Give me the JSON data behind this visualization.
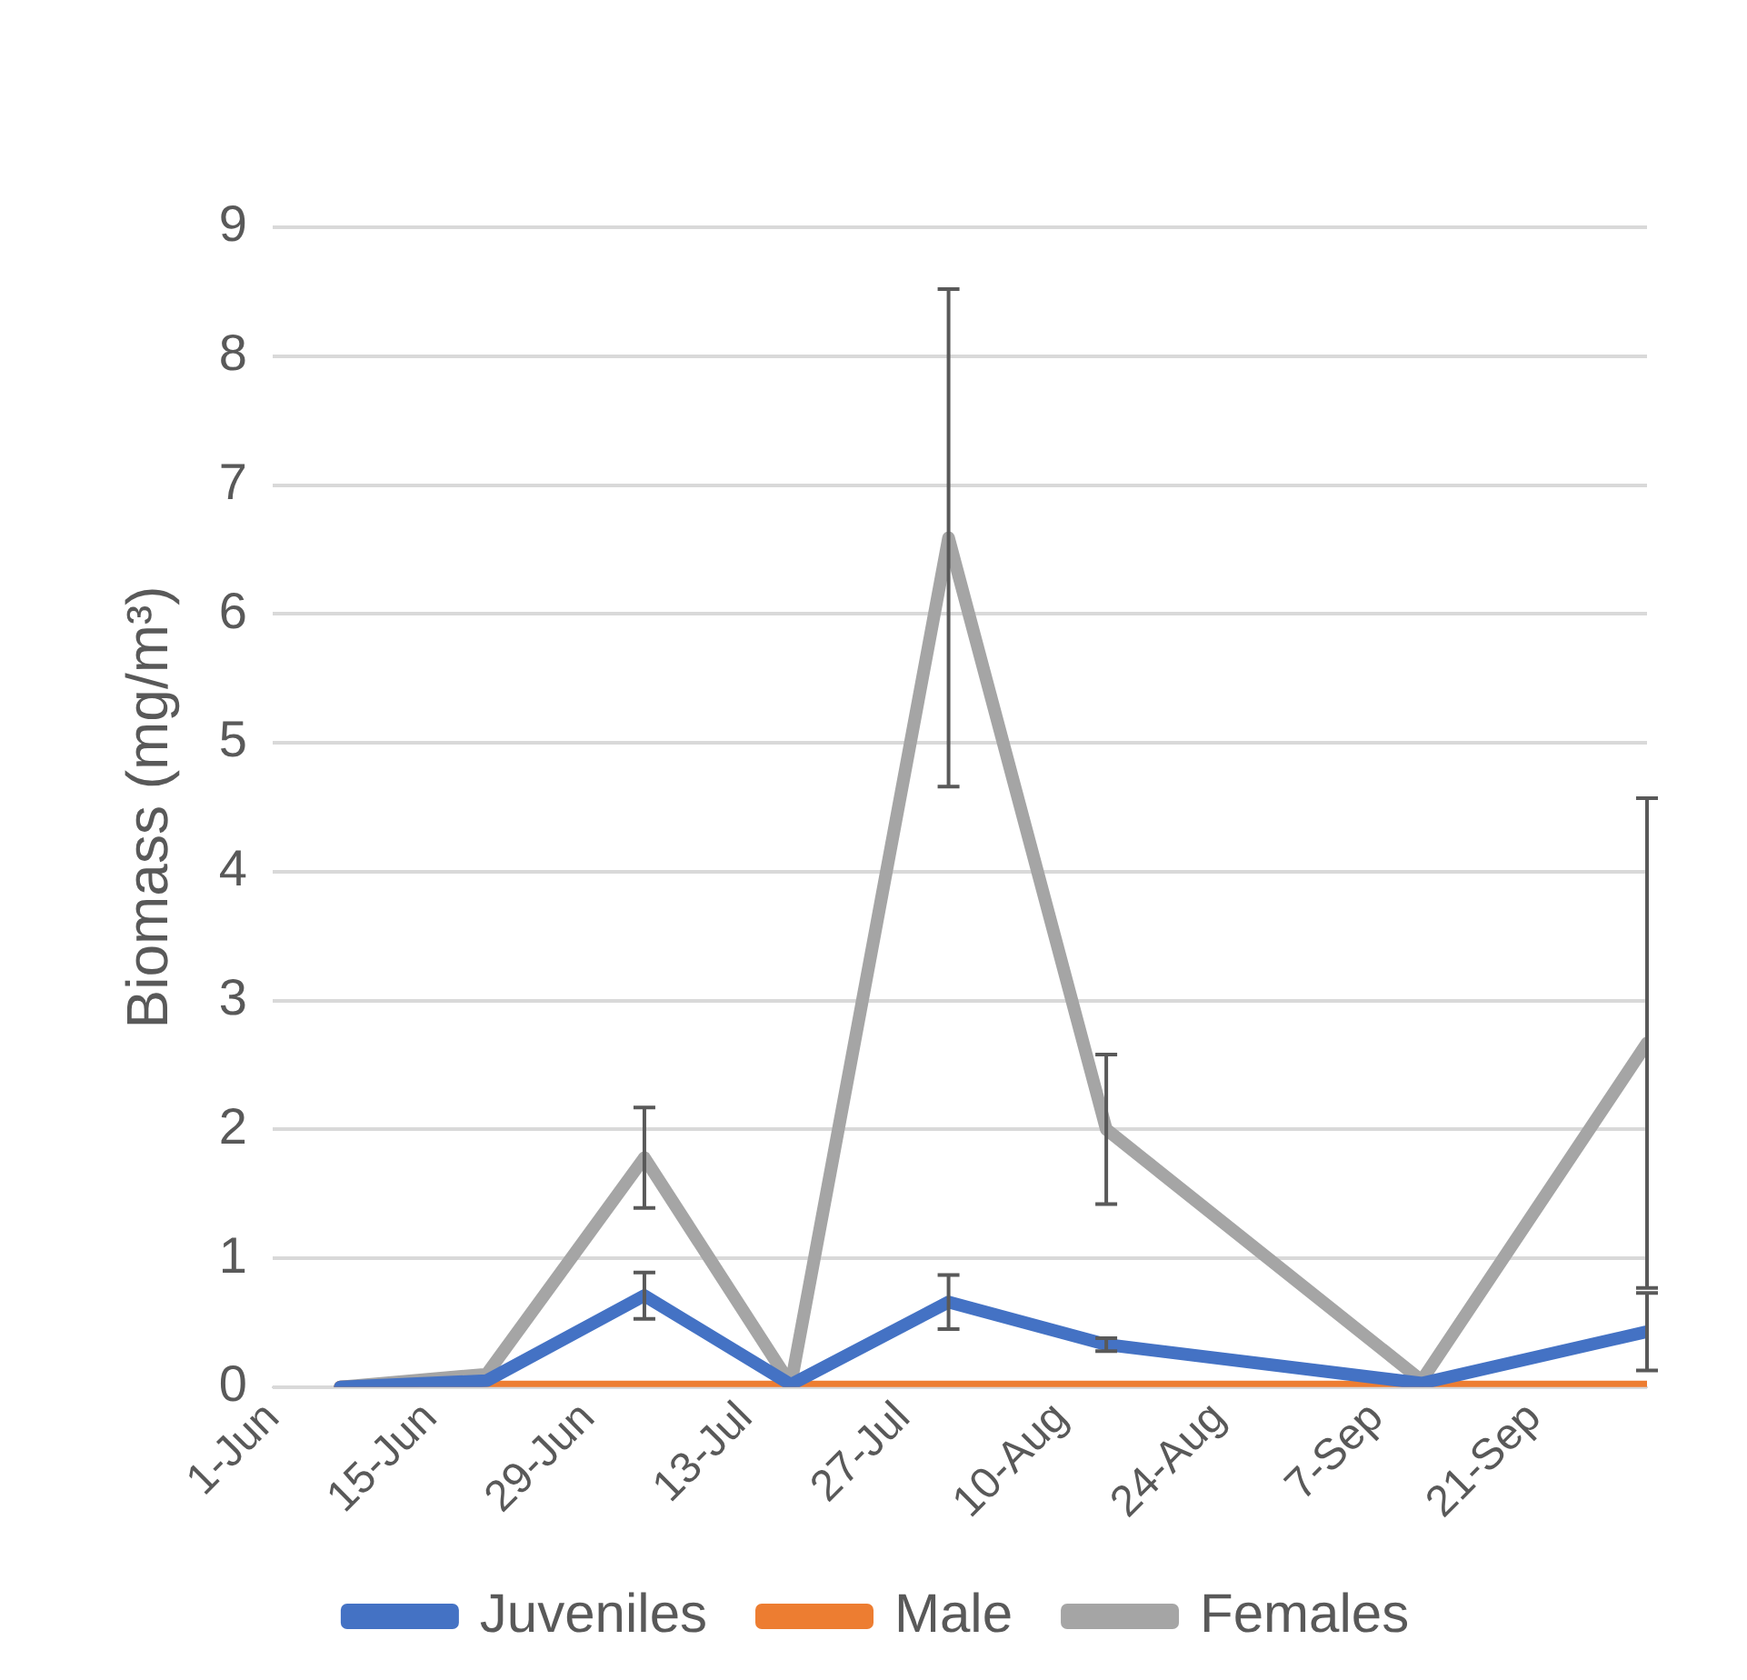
{
  "chart_data": {
    "type": "line",
    "ylabel": "Biomass (mg/m³)",
    "x": [
      "--06-07",
      "--06-20",
      "--07-04",
      "--07-17",
      "--07-31",
      "--08-14",
      "--09-11",
      "--10-01"
    ],
    "xlim": [
      "--06-01",
      "--10-01"
    ],
    "xticks": [
      {
        "value": "--06-01",
        "label": "1-Jun"
      },
      {
        "value": "--06-15",
        "label": "15-Jun"
      },
      {
        "value": "--06-29",
        "label": "29-Jun"
      },
      {
        "value": "--07-13",
        "label": "13-Jul"
      },
      {
        "value": "--07-27",
        "label": "27-Jul"
      },
      {
        "value": "--08-10",
        "label": "10-Aug"
      },
      {
        "value": "--08-24",
        "label": "24-Aug"
      },
      {
        "value": "--09-07",
        "label": "7-Sep"
      },
      {
        "value": "--09-21",
        "label": "21-Sep"
      }
    ],
    "ylim": [
      0,
      9
    ],
    "yticks": [
      0,
      1,
      2,
      3,
      4,
      5,
      6,
      7,
      8,
      9
    ],
    "grid": "y",
    "legend": "bottom",
    "marker": "none",
    "line_style": "solid",
    "series": [
      {
        "name": "Juveniles",
        "color": "#4472c4",
        "values": [
          0,
          0.05,
          0.71,
          0.02,
          0.66,
          0.33,
          0.03,
          0.43
        ],
        "errors": [
          null,
          null,
          0.18,
          null,
          0.21,
          0.05,
          null,
          0.3
        ]
      },
      {
        "name": "Male",
        "color": "#ed7d31",
        "values": [
          0,
          0,
          0,
          0,
          0,
          0,
          0,
          0
        ]
      },
      {
        "name": "Females",
        "color": "#a5a5a5",
        "values": [
          0,
          0.1,
          1.78,
          0.02,
          6.59,
          2.0,
          0.05,
          2.67
        ],
        "errors": [
          null,
          null,
          0.39,
          null,
          1.93,
          0.58,
          null,
          1.9
        ]
      }
    ]
  }
}
